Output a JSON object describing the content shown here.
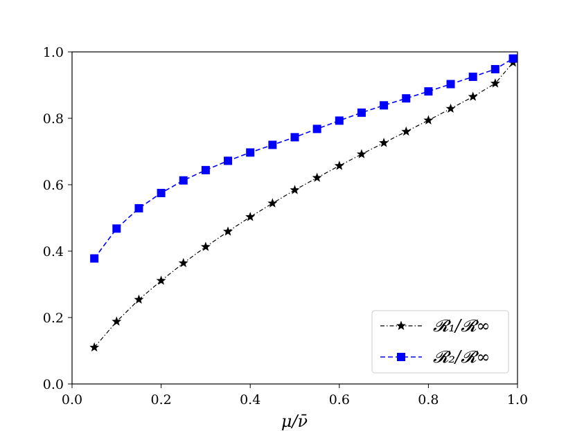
{
  "chart_data": {
    "type": "line",
    "title": "",
    "xlabel": "μ/ν̄",
    "ylabel": "",
    "xlim": [
      0.0,
      1.0
    ],
    "ylim": [
      0.0,
      1.0
    ],
    "xticks": [
      "0.0",
      "0.2",
      "0.4",
      "0.6",
      "0.8",
      "1.0"
    ],
    "yticks": [
      "0.0",
      "0.2",
      "0.4",
      "0.6",
      "0.8",
      "1.0"
    ],
    "grid": false,
    "legend_position": "bottom-right",
    "series": [
      {
        "name": "𝓡₁/𝓡∞",
        "color": "#000000",
        "marker": "star",
        "linestyle": "dash-dot",
        "x": [
          0.05,
          0.1,
          0.15,
          0.2,
          0.25,
          0.3,
          0.35,
          0.4,
          0.45,
          0.5,
          0.55,
          0.6,
          0.65,
          0.7,
          0.75,
          0.8,
          0.85,
          0.9,
          0.95,
          0.99
        ],
        "y": [
          0.11,
          0.188,
          0.254,
          0.311,
          0.364,
          0.413,
          0.459,
          0.503,
          0.544,
          0.584,
          0.621,
          0.657,
          0.692,
          0.726,
          0.76,
          0.794,
          0.829,
          0.865,
          0.905,
          0.968
        ]
      },
      {
        "name": "𝓡₂/𝓡∞",
        "color": "#0000ff",
        "marker": "square",
        "linestyle": "dashed",
        "x": [
          0.05,
          0.1,
          0.15,
          0.2,
          0.25,
          0.3,
          0.35,
          0.4,
          0.45,
          0.5,
          0.55,
          0.6,
          0.65,
          0.7,
          0.75,
          0.8,
          0.85,
          0.9,
          0.95,
          0.99
        ],
        "y": [
          0.378,
          0.468,
          0.529,
          0.575,
          0.613,
          0.644,
          0.672,
          0.697,
          0.72,
          0.743,
          0.768,
          0.793,
          0.817,
          0.839,
          0.86,
          0.881,
          0.903,
          0.925,
          0.948,
          0.98
        ]
      }
    ]
  }
}
